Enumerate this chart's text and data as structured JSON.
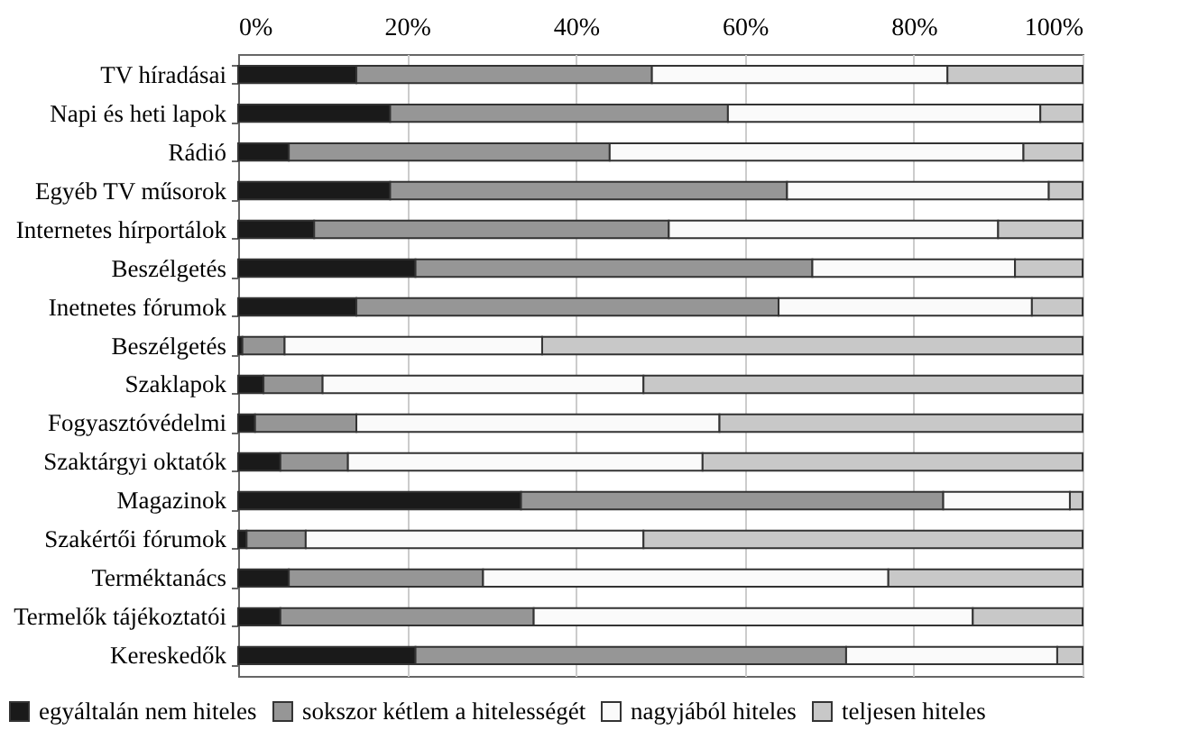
{
  "chart_data": {
    "type": "bar",
    "orientation": "horizontal",
    "stacked": true,
    "categories": [
      "TV híradásai",
      "Napi és heti lapok",
      "Rádió",
      "Egyéb TV műsorok",
      "Internetes hírportálok",
      "Beszélgetés",
      "Inetnetes fórumok",
      "Beszélgetés",
      "Szaklapok",
      "Fogyasztóvédelmi",
      "Szaktárgyi oktatók",
      "Magazinok",
      "Szakértői fórumok",
      "Terméktanács",
      "Termelők tájékoztatói",
      "Kereskedők"
    ],
    "series": [
      {
        "name": "egyáltalán nem hiteles",
        "color": "#1a1a1a",
        "values": [
          14,
          18,
          6,
          18,
          9,
          21,
          14,
          0.5,
          3,
          2,
          5,
          33.5,
          1,
          6,
          5,
          21
        ]
      },
      {
        "name": "sokszor kétlem a hitelességét",
        "color": "#969696",
        "values": [
          35,
          40,
          38,
          47,
          42,
          47,
          50,
          5,
          7,
          12,
          8,
          50,
          7,
          23,
          30,
          51
        ]
      },
      {
        "name": "nagyjából hiteles",
        "color": "#fafafa",
        "values": [
          35,
          37,
          49,
          31,
          39,
          24,
          30,
          30.5,
          38,
          43,
          42,
          15,
          40,
          48,
          52,
          25
        ]
      },
      {
        "name": "teljesen hiteles",
        "color": "#c8c8c8",
        "values": [
          16,
          5,
          7,
          4,
          10,
          8,
          6,
          64,
          52,
          43,
          45,
          1.5,
          52,
          23,
          13,
          3
        ]
      }
    ],
    "xlim": [
      0,
      100
    ],
    "xticks": [
      {
        "value": 0,
        "label": "0%"
      },
      {
        "value": 20,
        "label": "20%"
      },
      {
        "value": 40,
        "label": "40%"
      },
      {
        "value": 60,
        "label": "60%"
      },
      {
        "value": 80,
        "label": "80%"
      },
      {
        "value": 100,
        "label": "100%"
      }
    ],
    "grid": "x",
    "legend": "bottom"
  }
}
